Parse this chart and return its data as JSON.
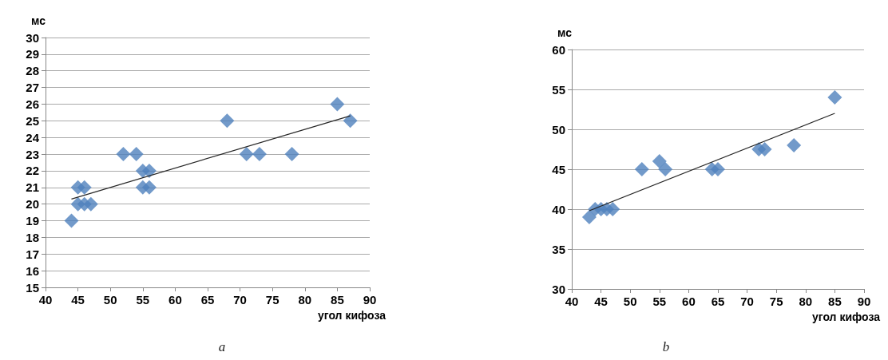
{
  "chart_data": [
    {
      "type": "scatter",
      "xlabel": "угол кифоза",
      "ylabel": "мс",
      "annotations": [
        "a"
      ],
      "marker": "diamond",
      "grid": "y",
      "xlim": [
        40,
        90
      ],
      "xticks": [
        40,
        45,
        50,
        55,
        60,
        65,
        70,
        75,
        80,
        85,
        90
      ],
      "ylim": [
        15,
        30
      ],
      "yticks": [
        15,
        16,
        17,
        18,
        19,
        20,
        21,
        22,
        23,
        24,
        25,
        26,
        27,
        28,
        29,
        30
      ],
      "series": [
        {
          "color": "#4f81bd",
          "x": [
            44,
            45,
            46,
            45,
            46,
            47,
            52,
            54,
            55,
            56,
            55,
            56,
            68,
            71,
            73,
            78,
            85,
            87
          ],
          "values": [
            19,
            21,
            21,
            20,
            20,
            20,
            23,
            23,
            22,
            22,
            21,
            21,
            25,
            23,
            23,
            23,
            26,
            25
          ]
        },
        {
          "type": "line",
          "color": "#262626",
          "marker": "none",
          "x": [
            44,
            87
          ],
          "values": [
            20.3,
            25.3
          ]
        }
      ]
    },
    {
      "type": "scatter",
      "xlabel": "угол кифоза",
      "ylabel": "мс",
      "annotations": [
        "b"
      ],
      "marker": "diamond",
      "grid": "y",
      "xlim": [
        40,
        90
      ],
      "xticks": [
        40,
        45,
        50,
        55,
        60,
        65,
        70,
        75,
        80,
        85,
        90
      ],
      "ylim": [
        30,
        60
      ],
      "yticks": [
        30,
        35,
        40,
        45,
        50,
        55,
        60
      ],
      "series": [
        {
          "color": "#4f81bd",
          "x": [
            43,
            44,
            45,
            46,
            47,
            52,
            55,
            56,
            64,
            65,
            72,
            73,
            78,
            85
          ],
          "values": [
            39,
            40,
            40,
            40,
            40,
            45,
            46,
            45,
            45,
            45,
            47.5,
            47.5,
            48,
            54
          ]
        },
        {
          "type": "line",
          "color": "#262626",
          "marker": "none",
          "x": [
            43,
            85
          ],
          "values": [
            39.8,
            52
          ]
        }
      ]
    }
  ]
}
